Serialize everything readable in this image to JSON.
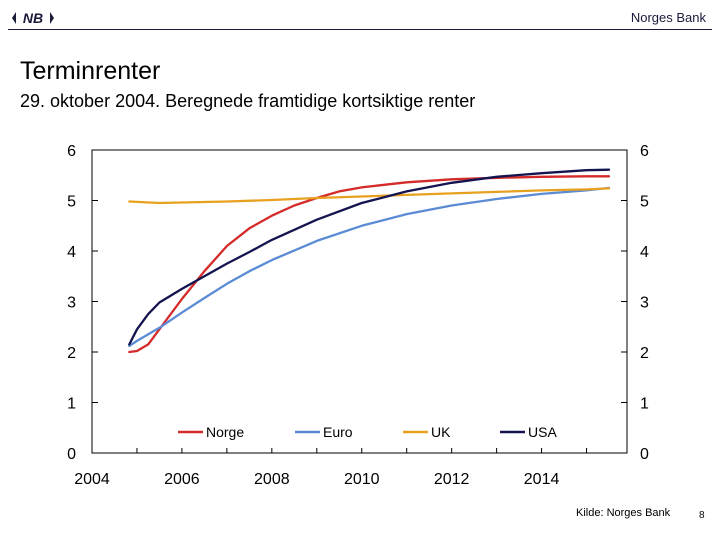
{
  "header": {
    "logo_text": "NB",
    "bank_name": "Norges Bank"
  },
  "slide": {
    "title": "Terminrenter",
    "subtitle": "29. oktober 2004.  Beregnede framtidige kortsiktige renter",
    "source": "Kilde:  Norges Bank",
    "page_number": "8"
  },
  "chart_data": {
    "type": "line",
    "title": "",
    "xlabel": "",
    "ylabel": "",
    "xlim": [
      2004,
      2015.9
    ],
    "ylim": [
      0,
      6
    ],
    "xticks": [
      2004,
      2006,
      2008,
      2010,
      2012,
      2014
    ],
    "yticks": [
      0,
      1,
      2,
      3,
      4,
      5,
      6
    ],
    "dual_y_axis": true,
    "grid": false,
    "legend_position": "inside-bottom",
    "series": [
      {
        "name": "Norge",
        "color": "#d42a2a",
        "x": [
          2004.83,
          2005.0,
          2005.25,
          2005.5,
          2006.0,
          2006.5,
          2007.0,
          2007.5,
          2008.0,
          2008.5,
          2009.0,
          2009.5,
          2010.0,
          2010.5,
          2011.0,
          2011.5,
          2012.0,
          2013.0,
          2014.0,
          2015.0,
          2015.5
        ],
        "y": [
          2.0,
          2.02,
          2.15,
          2.45,
          3.05,
          3.6,
          4.1,
          4.45,
          4.7,
          4.9,
          5.05,
          5.18,
          5.26,
          5.31,
          5.36,
          5.39,
          5.42,
          5.45,
          5.47,
          5.48,
          5.48
        ]
      },
      {
        "name": "Euro",
        "color": "#5b8bd4",
        "x": [
          2004.83,
          2005.0,
          2005.5,
          2006.0,
          2006.5,
          2007.0,
          2007.5,
          2008.0,
          2009.0,
          2010.0,
          2011.0,
          2012.0,
          2013.0,
          2014.0,
          2015.0,
          2015.5
        ],
        "y": [
          2.12,
          2.22,
          2.48,
          2.78,
          3.07,
          3.35,
          3.6,
          3.82,
          4.2,
          4.5,
          4.73,
          4.9,
          5.03,
          5.13,
          5.2,
          5.25
        ]
      },
      {
        "name": "UK",
        "color": "#e8a020",
        "x": [
          2004.83,
          2005.5,
          2006.0,
          2007.0,
          2008.0,
          2009.0,
          2010.0,
          2011.0,
          2012.0,
          2013.0,
          2014.0,
          2015.0,
          2015.5
        ],
        "y": [
          4.98,
          4.95,
          4.96,
          4.98,
          5.01,
          5.05,
          5.08,
          5.11,
          5.14,
          5.17,
          5.2,
          5.22,
          5.24
        ]
      },
      {
        "name": "USA",
        "color": "#141450",
        "x": [
          2004.83,
          2005.0,
          2005.25,
          2005.5,
          2006.0,
          2006.5,
          2007.0,
          2007.5,
          2008.0,
          2009.0,
          2010.0,
          2011.0,
          2012.0,
          2013.0,
          2014.0,
          2015.0,
          2015.5
        ],
        "y": [
          2.15,
          2.45,
          2.75,
          2.98,
          3.25,
          3.5,
          3.75,
          3.98,
          4.22,
          4.62,
          4.95,
          5.18,
          5.35,
          5.47,
          5.54,
          5.6,
          5.61
        ]
      }
    ]
  }
}
